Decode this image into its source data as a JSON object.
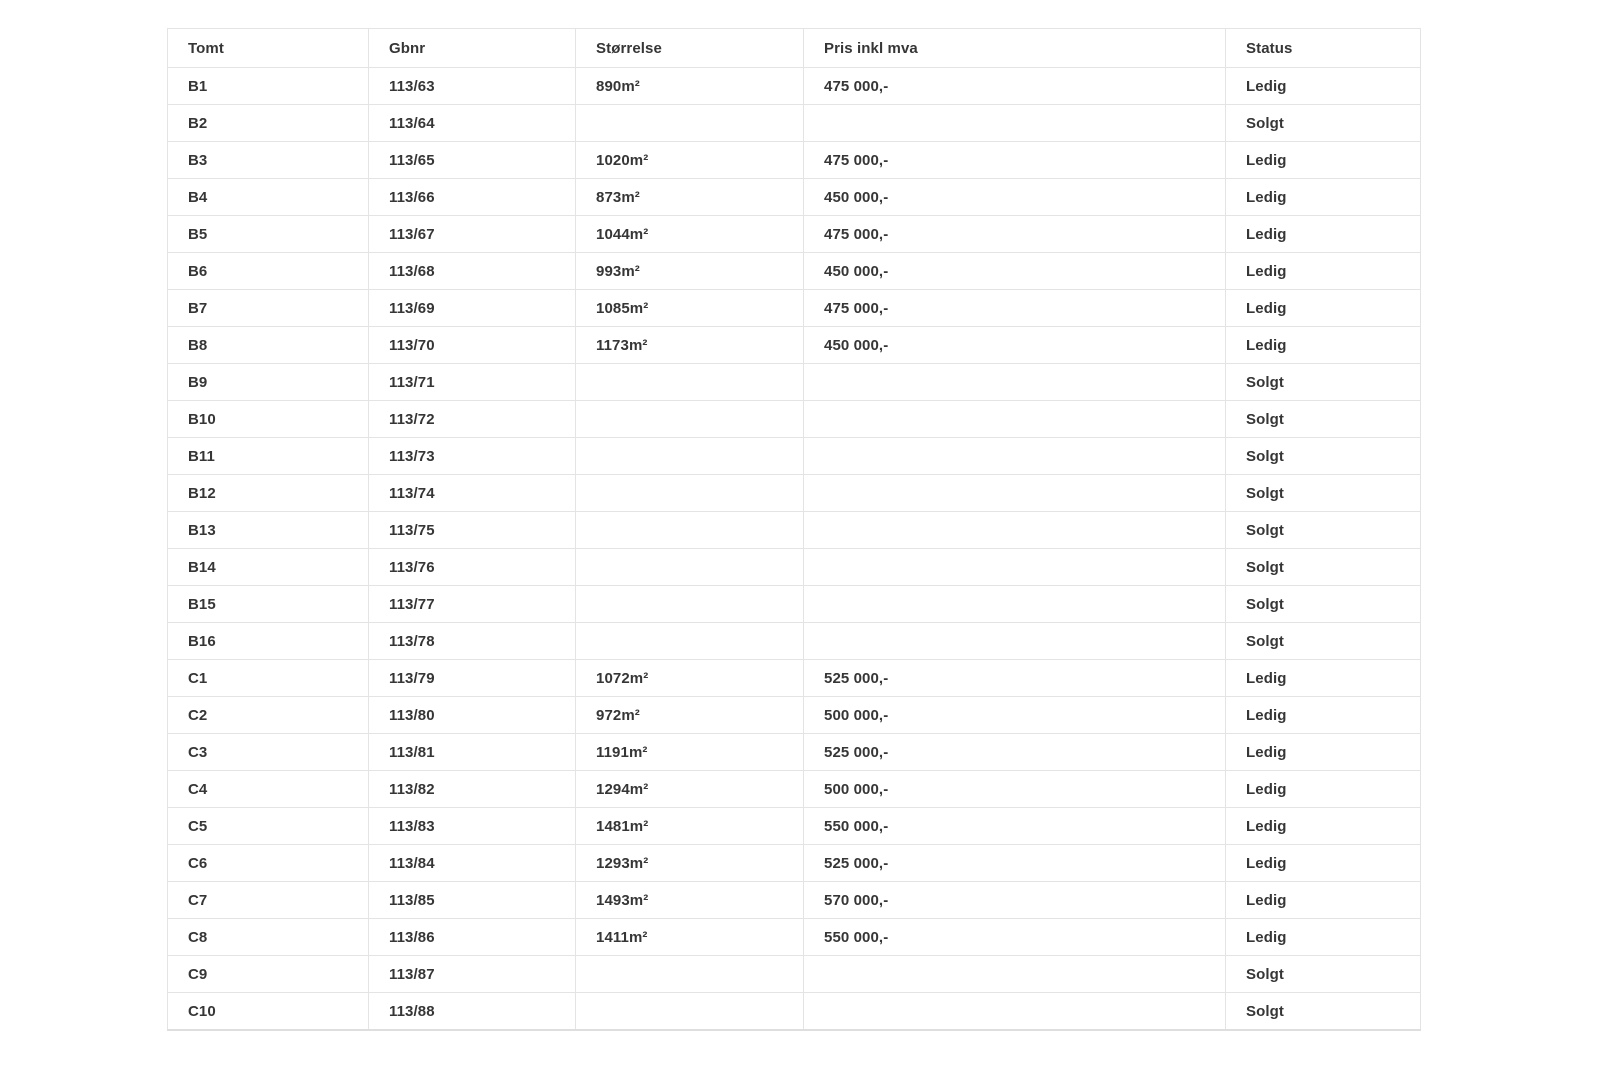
{
  "colors": {
    "ledig": "#2e7d32",
    "solgt": "#dd1f3d",
    "text": "#363636",
    "border": "#e4e4e4"
  },
  "table": {
    "columns": [
      {
        "key": "tomt",
        "label": "Tomt"
      },
      {
        "key": "gbnr",
        "label": "Gbnr"
      },
      {
        "key": "storrelse",
        "label": "Størrelse"
      },
      {
        "key": "pris",
        "label": "Pris inkl mva"
      },
      {
        "key": "status",
        "label": "Status"
      }
    ],
    "rows": [
      {
        "tomt": "B1",
        "gbnr": "113/63",
        "storrelse": "890m²",
        "pris": "475 000,-",
        "status": "Ledig"
      },
      {
        "tomt": "B2",
        "gbnr": "113/64",
        "storrelse": "",
        "pris": "",
        "status": "Solgt"
      },
      {
        "tomt": "B3",
        "gbnr": "113/65",
        "storrelse": "1020m²",
        "pris": "475 000,-",
        "status": "Ledig"
      },
      {
        "tomt": "B4",
        "gbnr": "113/66",
        "storrelse": "873m²",
        "pris": "450 000,-",
        "status": "Ledig"
      },
      {
        "tomt": "B5",
        "gbnr": "113/67",
        "storrelse": "1044m²",
        "pris": "475 000,-",
        "status": "Ledig"
      },
      {
        "tomt": "B6",
        "gbnr": "113/68",
        "storrelse": "993m²",
        "pris": "450 000,-",
        "status": "Ledig"
      },
      {
        "tomt": "B7",
        "gbnr": "113/69",
        "storrelse": "1085m²",
        "pris": "475 000,-",
        "status": "Ledig"
      },
      {
        "tomt": "B8",
        "gbnr": "113/70",
        "storrelse": "1173m²",
        "pris": "450 000,-",
        "status": "Ledig"
      },
      {
        "tomt": "B9",
        "gbnr": "113/71",
        "storrelse": "",
        "pris": "",
        "status": "Solgt"
      },
      {
        "tomt": "B10",
        "gbnr": "113/72",
        "storrelse": "",
        "pris": "",
        "status": "Solgt"
      },
      {
        "tomt": "B11",
        "gbnr": "113/73",
        "storrelse": "",
        "pris": "",
        "status": "Solgt"
      },
      {
        "tomt": "B12",
        "gbnr": "113/74",
        "storrelse": "",
        "pris": "",
        "status": "Solgt"
      },
      {
        "tomt": "B13",
        "gbnr": "113/75",
        "storrelse": "",
        "pris": "",
        "status": "Solgt"
      },
      {
        "tomt": "B14",
        "gbnr": "113/76",
        "storrelse": "",
        "pris": "",
        "status": "Solgt"
      },
      {
        "tomt": "B15",
        "gbnr": "113/77",
        "storrelse": "",
        "pris": "",
        "status": "Solgt"
      },
      {
        "tomt": "B16",
        "gbnr": "113/78",
        "storrelse": "",
        "pris": "",
        "status": "Solgt"
      },
      {
        "tomt": "C1",
        "gbnr": "113/79",
        "storrelse": "1072m²",
        "pris": "525 000,-",
        "status": "Ledig"
      },
      {
        "tomt": "C2",
        "gbnr": "113/80",
        "storrelse": "972m²",
        "pris": "500 000,-",
        "status": "Ledig"
      },
      {
        "tomt": "C3",
        "gbnr": "113/81",
        "storrelse": "1191m²",
        "pris": "525 000,-",
        "status": "Ledig"
      },
      {
        "tomt": "C4",
        "gbnr": "113/82",
        "storrelse": "1294m²",
        "pris": "500 000,-",
        "status": "Ledig"
      },
      {
        "tomt": "C5",
        "gbnr": "113/83",
        "storrelse": "1481m²",
        "pris": "550 000,-",
        "status": "Ledig"
      },
      {
        "tomt": "C6",
        "gbnr": "113/84",
        "storrelse": "1293m²",
        "pris": "525 000,-",
        "status": "Ledig"
      },
      {
        "tomt": "C7",
        "gbnr": "113/85",
        "storrelse": "1493m²",
        "pris": "570 000,-",
        "status": "Ledig"
      },
      {
        "tomt": "C8",
        "gbnr": "113/86",
        "storrelse": "1411m²",
        "pris": "550 000,-",
        "status": "Ledig"
      },
      {
        "tomt": "C9",
        "gbnr": "113/87",
        "storrelse": "",
        "pris": "",
        "status": "Solgt"
      },
      {
        "tomt": "C10",
        "gbnr": "113/88",
        "storrelse": "",
        "pris": "",
        "status": "Solgt"
      }
    ]
  }
}
